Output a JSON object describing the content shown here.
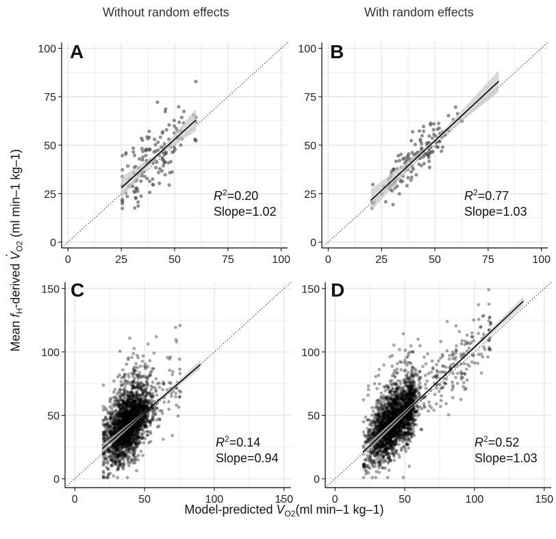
{
  "column_titles": {
    "left": "Without random effects",
    "right": "With random effects"
  },
  "y_axis_label": {
    "before": "Mean ",
    "fh_f": "f",
    "fh_sub": "H",
    "middle": "-derived ",
    "v": "V",
    "v_sub": "O2",
    "units": " (ml min–1 kg–1)"
  },
  "x_axis_label": {
    "before": "Model-predicted ",
    "v": "V",
    "v_sub": "O2",
    "units": "(ml min–1 kg–1)"
  },
  "panels": [
    {
      "letter": "A",
      "r2_label": "R",
      "r2_value": "=0.20",
      "slope_text": "Slope=1.02"
    },
    {
      "letter": "B",
      "r2_label": "R",
      "r2_value": "=0.77",
      "slope_text": "Slope=1.03"
    },
    {
      "letter": "C",
      "r2_label": "R",
      "r2_value": "=0.14",
      "slope_text": "Slope=0.94"
    },
    {
      "letter": "D",
      "r2_label": "R",
      "r2_value": "=0.52",
      "slope_text": "Slope=1.03"
    }
  ],
  "chart_data": [
    {
      "type": "scatter",
      "panel": "A",
      "xlim": [
        -3,
        103
      ],
      "ylim": [
        -3,
        103
      ],
      "xticks": [
        0,
        25,
        50,
        75,
        100
      ],
      "yticks": [
        0,
        25,
        50,
        75,
        100
      ],
      "reference_line": "y=x dotted",
      "grid": true,
      "points_generated": {
        "n": 150,
        "x_range": [
          25,
          60
        ],
        "center": [
          40,
          42
        ],
        "seed": 11
      },
      "fit_line": {
        "x": [
          25,
          60
        ],
        "y": [
          28,
          63
        ]
      },
      "annotations": {
        "R2": 0.2,
        "slope": 1.02
      }
    },
    {
      "type": "scatter",
      "panel": "B",
      "xlim": [
        -3,
        103
      ],
      "ylim": [
        -3,
        103
      ],
      "xticks": [
        0,
        25,
        50,
        75,
        100
      ],
      "yticks": [
        0,
        25,
        50,
        75,
        100
      ],
      "reference_line": "y=x dotted",
      "grid": true,
      "points_generated": {
        "n": 150,
        "x_range": [
          20,
          80
        ],
        "center": [
          40,
          42
        ],
        "seed": 23
      },
      "fit_line": {
        "x": [
          20,
          80
        ],
        "y": [
          21.5,
          83
        ]
      },
      "annotations": {
        "R2": 0.77,
        "slope": 1.03
      }
    },
    {
      "type": "scatter",
      "panel": "C",
      "xlim": [
        -7,
        155
      ],
      "ylim": [
        -7,
        155
      ],
      "xticks": [
        0,
        50,
        100,
        150
      ],
      "yticks": [
        0,
        50,
        100,
        150
      ],
      "reference_line": "y=x dotted",
      "grid": true,
      "points_generated": {
        "n": 2200,
        "x_range": [
          20,
          90
        ],
        "center": [
          38,
          40
        ],
        "seed": 37
      },
      "fit_line": {
        "x": [
          20,
          90
        ],
        "y": [
          24,
          90
        ]
      },
      "annotations": {
        "R2": 0.14,
        "slope": 0.94
      }
    },
    {
      "type": "scatter",
      "panel": "D",
      "xlim": [
        -7,
        155
      ],
      "ylim": [
        -7,
        155
      ],
      "xticks": [
        0,
        50,
        100,
        150
      ],
      "yticks": [
        0,
        50,
        100,
        150
      ],
      "reference_line": "y=x dotted",
      "grid": true,
      "points_generated": {
        "n": 2400,
        "x_range": [
          20,
          135
        ],
        "center": [
          40,
          42
        ],
        "seed": 53
      },
      "fit_line": {
        "x": [
          20,
          135
        ],
        "y": [
          21,
          140
        ]
      },
      "annotations": {
        "R2": 0.52,
        "slope": 1.03
      }
    }
  ],
  "colors": {
    "point": "#555555",
    "dense_point": "#000000",
    "grid": "#e6e6e6",
    "ci_band": "#c8c8c8",
    "fit_line": "#000000"
  }
}
